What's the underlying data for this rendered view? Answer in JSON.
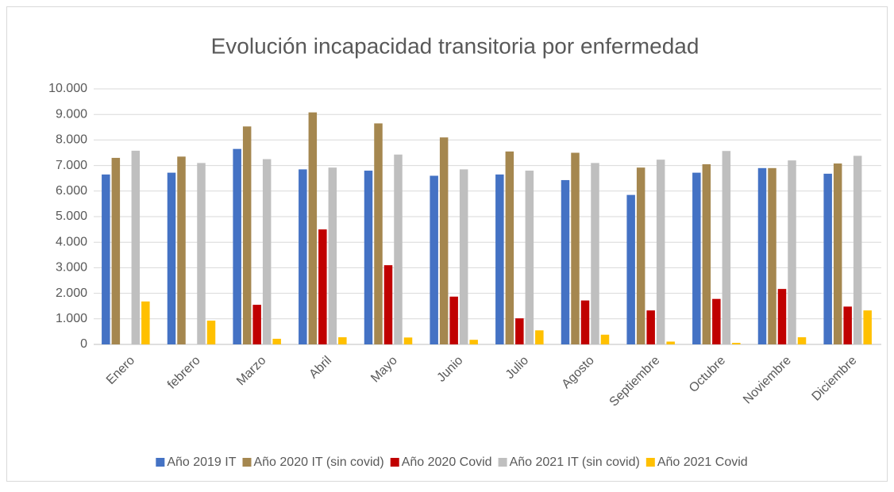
{
  "chart_data": {
    "type": "bar",
    "title": "Evolución incapacidad transitoria por enfermedad",
    "categories": [
      "Enero",
      "febrero",
      "Marzo",
      "Abril",
      "Mayo",
      "Junio",
      "Julio",
      "Agosto",
      "Septiembre",
      "Octubre",
      "Noviembre",
      "Diciembre"
    ],
    "series": [
      {
        "name": "Año 2019 IT",
        "color": "#4472c4",
        "values": [
          6650,
          6720,
          7650,
          6850,
          6800,
          6600,
          6650,
          6430,
          5850,
          6720,
          6900,
          6680
        ]
      },
      {
        "name": "Año 2020 IT (sin covid)",
        "color": "#a5874f",
        "values": [
          7300,
          7350,
          8530,
          9080,
          8650,
          8100,
          7550,
          7500,
          6920,
          7050,
          6900,
          7080
        ]
      },
      {
        "name": "Año 2020 Covid",
        "color": "#c00000",
        "values": [
          0,
          0,
          1550,
          4500,
          3100,
          1870,
          1020,
          1720,
          1330,
          1780,
          2170,
          1480
        ]
      },
      {
        "name": "Año 2021 IT (sin covid)",
        "color": "#bfbfbf",
        "values": [
          7580,
          7100,
          7250,
          6920,
          7430,
          6850,
          6800,
          7100,
          7230,
          7570,
          7200,
          7380
        ]
      },
      {
        "name": "Año 2021 Covid",
        "color": "#ffc000",
        "values": [
          1680,
          930,
          220,
          280,
          270,
          180,
          550,
          380,
          110,
          60,
          280,
          1330
        ]
      }
    ],
    "ylim": [
      0,
      10000
    ],
    "yticks": [
      0,
      {
        "value": 1000,
        "label": "1.000"
      },
      {
        "value": 2000,
        "label": "2.000"
      },
      {
        "value": 3000,
        "label": "3.000"
      },
      {
        "value": 4000,
        "label": "4.000"
      },
      {
        "value": 5000,
        "label": "5.000"
      },
      {
        "value": 6000,
        "label": "6.000"
      },
      {
        "value": 7000,
        "label": "7.000"
      },
      {
        "value": 8000,
        "label": "8.000"
      },
      {
        "value": 9000,
        "label": "9.000"
      },
      {
        "value": 10000,
        "label": "10.000"
      }
    ],
    "grid": true,
    "legend": "bottom"
  }
}
